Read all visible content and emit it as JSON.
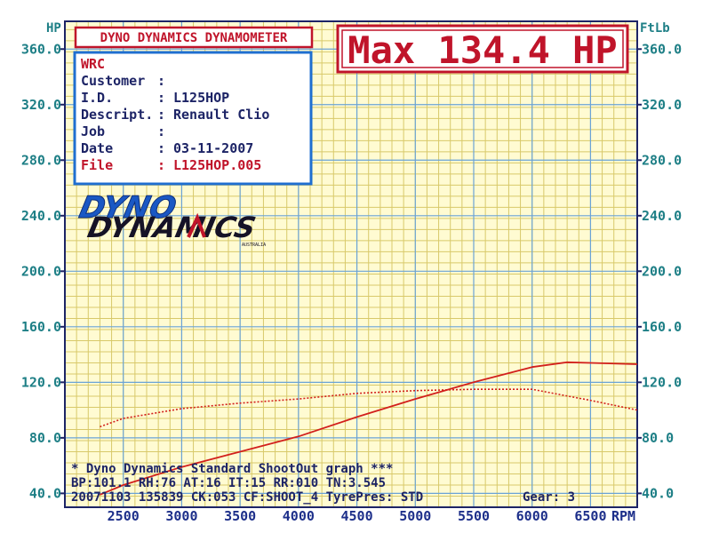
{
  "header": {
    "left_unit": "HP",
    "right_unit": "FtLb",
    "title_box": "DYNO DYNAMICS DYNAMOMETER",
    "max_label": "Max 134.4 HP"
  },
  "info": {
    "heading": "WRC",
    "rows": [
      {
        "key": "Customer",
        "sep": ":",
        "value": ""
      },
      {
        "key": "I.D.",
        "sep": ":",
        "value": "L125HOP"
      },
      {
        "key": "Descript.",
        "sep": ":",
        "value": "Renault Clio"
      },
      {
        "key": "Job",
        "sep": ":",
        "value": ""
      },
      {
        "key": "Date",
        "sep": ":",
        "value": "03-11-2007"
      },
      {
        "key": "File",
        "sep": ":",
        "value": "L125HOP.005"
      }
    ]
  },
  "logo": {
    "line1": "DYNO",
    "line2": "DYNAMICS",
    "sub": "AUSTRALIA"
  },
  "footer": {
    "line1": "* Dyno Dynamics Standard ShootOut graph ***",
    "line2": "BP:101.1 RH:76 AT:16 IT:15  RR:010 TN:3.545",
    "line3_left": "20071103 135839 CK:053 CF:SHOOT_4  TyrePres: STD",
    "line3_right": "Gear: 3"
  },
  "chart_data": {
    "type": "line",
    "title": "",
    "xlabel": "RPM",
    "ylabel_left": "HP",
    "ylabel_right": "FtLb",
    "xlim": [
      2000,
      6900
    ],
    "ylim": [
      30,
      380
    ],
    "x_ticks": [
      2500,
      3000,
      3500,
      4000,
      4500,
      5000,
      5500,
      6000,
      6500
    ],
    "x_tick_labels": [
      "2500",
      "3000",
      "3500",
      "4000",
      "4500",
      "5000",
      "5500",
      "6000",
      "6500"
    ],
    "y_ticks": [
      40,
      80,
      120,
      160,
      200,
      240,
      280,
      320,
      360
    ],
    "y_tick_labels": [
      "40.0",
      "80.0",
      "120.0",
      "160.0",
      "200.0",
      "240.0",
      "280.0",
      "320.0",
      "360.0"
    ],
    "grid": true,
    "colors": {
      "power": "#d2201c",
      "torque": "#d2201c",
      "grid": "#d8c96a",
      "axes": "#1d2466",
      "background": "#fffbd2"
    },
    "series": [
      {
        "id": "power",
        "style": "solid",
        "x": [
          2300,
          2500,
          3000,
          3500,
          4000,
          4500,
          5000,
          5500,
          6000,
          6300,
          6500,
          6900
        ],
        "y": [
          39,
          46,
          59,
          70,
          81,
          95,
          108,
          120,
          131,
          134.4,
          134,
          133
        ]
      },
      {
        "id": "torque",
        "style": "dotted",
        "x": [
          2300,
          2500,
          3000,
          3500,
          4000,
          4500,
          5000,
          5500,
          6000,
          6500,
          6900
        ],
        "y": [
          88,
          94,
          101,
          105,
          108,
          112,
          114,
          115,
          115,
          107,
          100
        ]
      }
    ]
  }
}
